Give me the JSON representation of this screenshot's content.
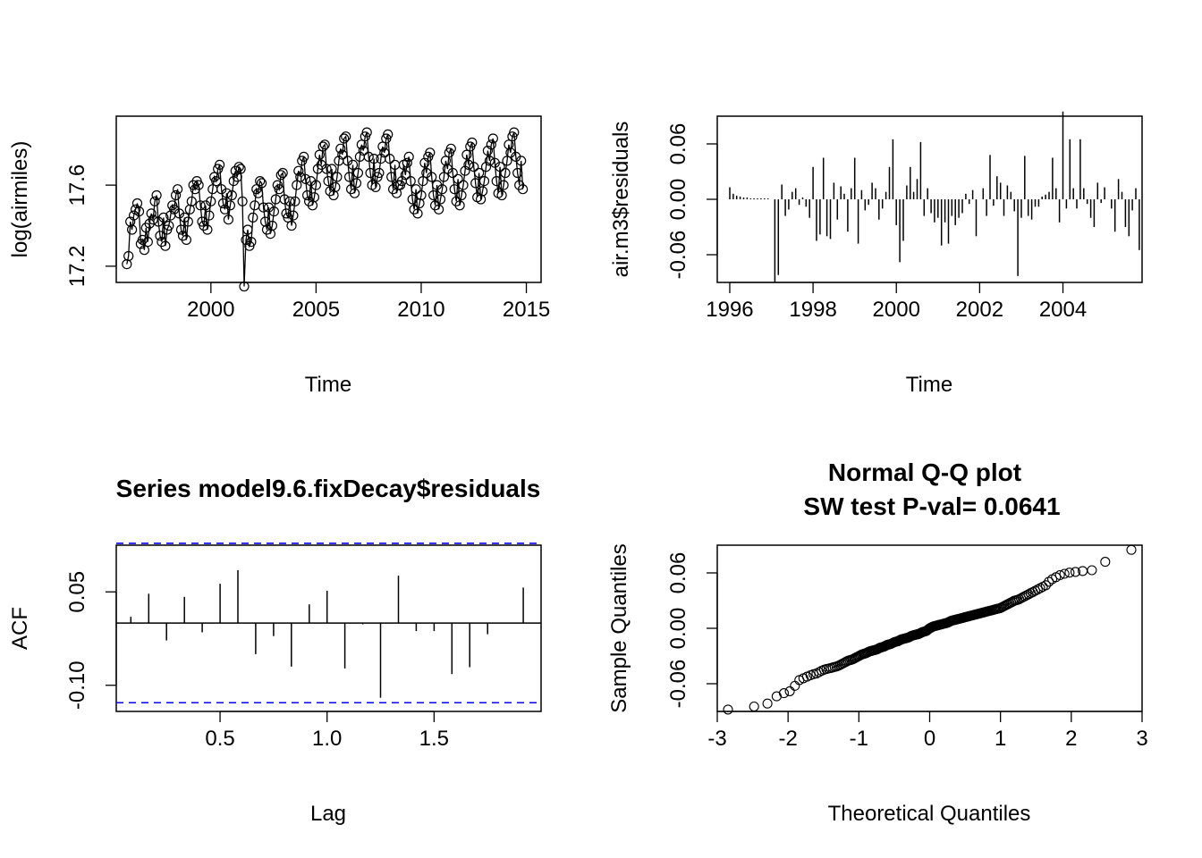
{
  "chart_data": [
    {
      "type": "line",
      "title": "",
      "xlabel": "Time",
      "ylabel": "log(airmiles)",
      "xlim": [
        1995.5,
        2015.7
      ],
      "ylim": [
        17.12,
        17.94
      ],
      "x_ticks": [
        2000,
        2005,
        2010,
        2015
      ],
      "x_tick_labels": [
        "2000",
        "2005",
        "2010",
        "2015"
      ],
      "y_ticks": [
        17.2,
        17.6
      ],
      "y_tick_labels": [
        "17.2",
        "17.6"
      ],
      "markers": "open-circle",
      "series": [
        {
          "start": 1996.0,
          "frequency": 12,
          "values": [
            17.21,
            17.25,
            17.42,
            17.38,
            17.45,
            17.48,
            17.51,
            17.47,
            17.31,
            17.33,
            17.28,
            17.39,
            17.32,
            17.41,
            17.46,
            17.43,
            17.52,
            17.55,
            17.42,
            17.35,
            17.32,
            17.44,
            17.3,
            17.38,
            17.4,
            17.45,
            17.5,
            17.48,
            17.55,
            17.58,
            17.46,
            17.38,
            17.35,
            17.44,
            17.33,
            17.42,
            17.48,
            17.52,
            17.6,
            17.58,
            17.62,
            17.6,
            17.5,
            17.42,
            17.4,
            17.5,
            17.38,
            17.45,
            17.52,
            17.58,
            17.64,
            17.62,
            17.68,
            17.7,
            17.58,
            17.51,
            17.48,
            17.56,
            17.43,
            17.5,
            17.55,
            17.62,
            17.67,
            17.64,
            17.69,
            17.68,
            17.52,
            17.1,
            17.33,
            17.38,
            17.3,
            17.32,
            17.44,
            17.5,
            17.58,
            17.56,
            17.62,
            17.61,
            17.49,
            17.42,
            17.38,
            17.49,
            17.36,
            17.4,
            17.47,
            17.53,
            17.6,
            17.58,
            17.65,
            17.66,
            17.53,
            17.46,
            17.44,
            17.52,
            17.4,
            17.45,
            17.52,
            17.6,
            17.67,
            17.64,
            17.72,
            17.74,
            17.63,
            17.55,
            17.52,
            17.62,
            17.5,
            17.54,
            17.6,
            17.68,
            17.75,
            17.7,
            17.79,
            17.8,
            17.68,
            17.62,
            17.57,
            17.68,
            17.55,
            17.59,
            17.64,
            17.72,
            17.78,
            17.75,
            17.83,
            17.84,
            17.72,
            17.64,
            17.58,
            17.7,
            17.56,
            17.61,
            17.66,
            17.74,
            17.8,
            17.77,
            17.84,
            17.86,
            17.74,
            17.66,
            17.6,
            17.73,
            17.59,
            17.64,
            17.66,
            17.73,
            17.79,
            17.76,
            17.83,
            17.85,
            17.73,
            17.64,
            17.58,
            17.7,
            17.56,
            17.6,
            17.6,
            17.62,
            17.7,
            17.65,
            17.71,
            17.74,
            17.62,
            17.53,
            17.48,
            17.58,
            17.46,
            17.51,
            17.55,
            17.62,
            17.71,
            17.66,
            17.74,
            17.76,
            17.64,
            17.55,
            17.5,
            17.6,
            17.48,
            17.53,
            17.58,
            17.64,
            17.72,
            17.68,
            17.76,
            17.78,
            17.66,
            17.58,
            17.52,
            17.63,
            17.5,
            17.55,
            17.6,
            17.67,
            17.75,
            17.7,
            17.79,
            17.81,
            17.69,
            17.61,
            17.54,
            17.66,
            17.53,
            17.57,
            17.62,
            17.69,
            17.77,
            17.72,
            17.8,
            17.83,
            17.71,
            17.62,
            17.56,
            17.69,
            17.55,
            17.6,
            17.66,
            17.72,
            17.8,
            17.76,
            17.84,
            17.86,
            17.74,
            17.66,
            17.6,
            17.72,
            17.58
          ]
        }
      ]
    },
    {
      "type": "bar",
      "title": "",
      "xlabel": "Time",
      "ylabel": "air.m3$residuals",
      "xlim": [
        1995.7,
        2005.9
      ],
      "ylim": [
        -0.09,
        0.09
      ],
      "x_ticks": [
        1996,
        1998,
        2000,
        2002,
        2004
      ],
      "x_tick_labels": [
        "1996",
        "1998",
        "2000",
        "2002",
        "2004"
      ],
      "y_ticks": [
        -0.06,
        0.0,
        0.06
      ],
      "y_tick_labels": [
        "-0.06",
        "0.00",
        "0.06"
      ],
      "series": [
        {
          "start": 1996.0,
          "frequency": 12,
          "values": [
            0.013,
            0.006,
            0.004,
            0.003,
            0.002,
            0.002,
            0.001,
            0.001,
            0.001,
            0.001,
            0.001,
            0.001,
            0.0,
            -0.09,
            -0.082,
            0.016,
            -0.018,
            -0.011,
            0.008,
            0.012,
            -0.006,
            0.002,
            -0.008,
            -0.02,
            0.035,
            -0.045,
            -0.038,
            0.045,
            -0.04,
            -0.043,
            0.018,
            -0.022,
            0.014,
            0.006,
            -0.035,
            0.012,
            0.045,
            -0.048,
            0.01,
            -0.012,
            -0.006,
            0.018,
            0.012,
            -0.022,
            -0.01,
            0.008,
            0.035,
            0.065,
            -0.028,
            -0.068,
            -0.045,
            0.015,
            0.035,
            0.008,
            0.022,
            0.062,
            -0.018,
            0.012,
            -0.015,
            -0.025,
            -0.02,
            -0.05,
            -0.025,
            -0.048,
            -0.018,
            -0.028,
            -0.02,
            -0.015,
            0.006,
            -0.005,
            0.01,
            -0.04,
            0.0,
            0.012,
            -0.018,
            0.048,
            -0.007,
            0.025,
            0.018,
            -0.018,
            0.015,
            0.008,
            -0.013,
            -0.083,
            -0.02,
            0.047,
            -0.018,
            -0.022,
            -0.008,
            -0.008,
            0.003,
            0.005,
            0.008,
            0.045,
            0.012,
            -0.025,
            0.095,
            -0.01,
            0.065,
            0.012,
            -0.01,
            0.065,
            0.012,
            -0.005,
            -0.02,
            -0.03,
            0.018,
            -0.004,
            0.013,
            0.0,
            -0.01,
            -0.035,
            0.022,
            0.008,
            -0.03,
            -0.04,
            -0.012,
            0.012,
            -0.055
          ]
        }
      ]
    },
    {
      "type": "bar",
      "title": "Series model9.6.fixDecay$residuals",
      "xlabel": "Lag",
      "ylabel": "ACF",
      "xlim": [
        0.015,
        2.0
      ],
      "ylim": [
        -0.142,
        0.125
      ],
      "x_ticks": [
        0.5,
        1.0,
        1.5
      ],
      "x_tick_labels": [
        "0.5",
        "1.0",
        "1.5"
      ],
      "y_ticks": [
        -0.1,
        0.05
      ],
      "y_tick_labels": [
        "-0.10",
        "0.05"
      ],
      "confidence_limit": 0.128,
      "series": [
        {
          "name": "",
          "x": [
            0.0833,
            0.1667,
            0.25,
            0.3333,
            0.4167,
            0.5,
            0.5833,
            0.6667,
            0.75,
            0.8333,
            0.9167,
            1.0,
            1.0833,
            1.1667,
            1.25,
            1.3333,
            1.4167,
            1.5,
            1.5833,
            1.6667,
            1.75,
            1.8333,
            1.9167
          ],
          "values": [
            0.01,
            0.047,
            -0.028,
            0.042,
            -0.015,
            0.063,
            0.085,
            -0.05,
            -0.021,
            -0.07,
            0.03,
            0.052,
            -0.073,
            -0.002,
            -0.12,
            0.076,
            -0.013,
            -0.013,
            -0.082,
            -0.071,
            -0.018,
            0.0,
            0.057
          ]
        }
      ]
    },
    {
      "type": "scatter",
      "title": "Normal Q-Q plot",
      "subtitle": "SW test P-val= 0.0641",
      "xlabel": "Theoretical Quantiles",
      "ylabel": "Sample Quantiles",
      "xlim": [
        -3.0,
        3.0
      ],
      "ylim": [
        -0.09,
        0.09
      ],
      "x_ticks": [
        -3,
        -2,
        -1,
        0,
        1,
        2,
        3
      ],
      "x_tick_labels": [
        "-3",
        "-2",
        "-1",
        "0",
        "1",
        "2",
        "3"
      ],
      "y_ticks": [
        -0.06,
        0.0,
        0.06
      ],
      "y_tick_labels": [
        "-0.06",
        "0.00",
        "0.06"
      ],
      "markers": "open-circle",
      "sample_size": 228,
      "series": [
        {
          "name": "",
          "points": [
            [
              -2.85,
              -0.088
            ],
            [
              -2.5,
              -0.085
            ],
            [
              -2.3,
              -0.082
            ],
            [
              -2.15,
              -0.073
            ],
            [
              -2.05,
              -0.07
            ],
            [
              -1.97,
              -0.068
            ],
            [
              -1.9,
              -0.062
            ],
            [
              -1.84,
              -0.056
            ],
            [
              -1.78,
              -0.054
            ],
            [
              -1.72,
              -0.052
            ],
            [
              -1.66,
              -0.05
            ],
            [
              -1.6,
              -0.049
            ],
            [
              -1.55,
              -0.047
            ],
            [
              -1.5,
              -0.045
            ],
            [
              -1.45,
              -0.044
            ],
            [
              -1.4,
              -0.043
            ],
            [
              -1.35,
              -0.042
            ],
            [
              -1.3,
              -0.041
            ],
            [
              -1.25,
              -0.039
            ],
            [
              -1.2,
              -0.037
            ],
            [
              -1.15,
              -0.035
            ],
            [
              -1.1,
              -0.034
            ],
            [
              -1.05,
              -0.032
            ],
            [
              -1.0,
              -0.03
            ],
            [
              -0.95,
              -0.028
            ],
            [
              -0.9,
              -0.027
            ],
            [
              -0.85,
              -0.025
            ],
            [
              -0.8,
              -0.024
            ],
            [
              -0.75,
              -0.023
            ],
            [
              -0.7,
              -0.021
            ],
            [
              -0.65,
              -0.02
            ],
            [
              -0.6,
              -0.018
            ],
            [
              -0.55,
              -0.017
            ],
            [
              -0.5,
              -0.015
            ],
            [
              -0.45,
              -0.014
            ],
            [
              -0.4,
              -0.012
            ],
            [
              -0.35,
              -0.011
            ],
            [
              -0.3,
              -0.01
            ],
            [
              -0.25,
              -0.008
            ],
            [
              -0.2,
              -0.007
            ],
            [
              -0.15,
              -0.006
            ],
            [
              -0.1,
              -0.004
            ],
            [
              -0.05,
              -0.003
            ],
            [
              0.0,
              0.0
            ],
            [
              0.05,
              0.002
            ],
            [
              0.1,
              0.003
            ],
            [
              0.15,
              0.004
            ],
            [
              0.2,
              0.005
            ],
            [
              0.25,
              0.006
            ],
            [
              0.3,
              0.008
            ],
            [
              0.35,
              0.009
            ],
            [
              0.4,
              0.01
            ],
            [
              0.45,
              0.011
            ],
            [
              0.5,
              0.012
            ],
            [
              0.55,
              0.013
            ],
            [
              0.6,
              0.014
            ],
            [
              0.65,
              0.015
            ],
            [
              0.7,
              0.016
            ],
            [
              0.75,
              0.017
            ],
            [
              0.8,
              0.018
            ],
            [
              0.85,
              0.019
            ],
            [
              0.9,
              0.02
            ],
            [
              0.95,
              0.021
            ],
            [
              1.0,
              0.022
            ],
            [
              1.05,
              0.024
            ],
            [
              1.1,
              0.026
            ],
            [
              1.15,
              0.028
            ],
            [
              1.2,
              0.03
            ],
            [
              1.25,
              0.031
            ],
            [
              1.3,
              0.033
            ],
            [
              1.35,
              0.035
            ],
            [
              1.4,
              0.037
            ],
            [
              1.45,
              0.039
            ],
            [
              1.5,
              0.041
            ],
            [
              1.55,
              0.043
            ],
            [
              1.6,
              0.045
            ],
            [
              1.65,
              0.047
            ],
            [
              1.7,
              0.052
            ],
            [
              1.75,
              0.054
            ],
            [
              1.8,
              0.056
            ],
            [
              1.85,
              0.058
            ],
            [
              1.95,
              0.06
            ],
            [
              2.05,
              0.061
            ],
            [
              2.15,
              0.062
            ],
            [
              2.3,
              0.063
            ],
            [
              2.5,
              0.073
            ],
            [
              2.85,
              0.085
            ]
          ]
        }
      ]
    }
  ]
}
